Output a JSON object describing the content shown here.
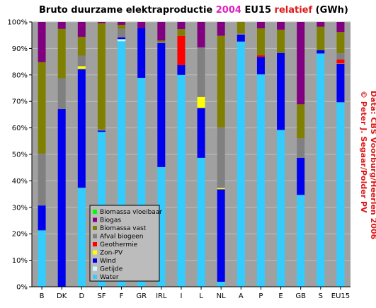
{
  "chart_data": {
    "type": "bar",
    "stacked": true,
    "title": {
      "part1": "Bruto duurzame elektraproductie ",
      "year": "2004",
      "part2": " EU15 ",
      "relatief": "relatief",
      "part3": " (GWh)"
    },
    "title_colors": {
      "base": "#000000",
      "year": "#e020c0",
      "relatief": "#e01a1a"
    },
    "credit_lines": [
      "© Peter J. Segaar/Polder PV",
      "Data: CBS Voorburg/Heerlen 2006"
    ],
    "credit_color": "#e01a1a",
    "categories": [
      "B",
      "DK",
      "D",
      "SF",
      "F",
      "GR",
      "IRL",
      "I",
      "L",
      "NL",
      "A",
      "P",
      "E",
      "GB",
      "S",
      "EU15"
    ],
    "y_ticks": [
      "0%",
      "10%",
      "20%",
      "30%",
      "40%",
      "50%",
      "60%",
      "70%",
      "80%",
      "90%",
      "100%"
    ],
    "ylim": [
      0,
      100
    ],
    "unit": "%",
    "grid": true,
    "plot_background": "#a0a0a0",
    "legend_position": "lower-left inside",
    "series": [
      {
        "name": "Water",
        "color": "#33ccff",
        "values": [
          21.3,
          0,
          37.4,
          58.5,
          92.7,
          78.9,
          45.2,
          80.0,
          48.7,
          1.9,
          92.6,
          80.2,
          59.2,
          34.7,
          88.1,
          69.7
        ]
      },
      {
        "name": "Getijde",
        "color": "#ccffff",
        "values": [
          0,
          0,
          0,
          0,
          0.8,
          0,
          0,
          0,
          0,
          0,
          0,
          0,
          0,
          0,
          0,
          0
        ]
      },
      {
        "name": "Wind",
        "color": "#0000ee",
        "values": [
          9.4,
          67.1,
          44.8,
          0.5,
          0.7,
          18.8,
          46.8,
          3.7,
          18.8,
          34.9,
          2.6,
          6.6,
          29.1,
          14.0,
          1.2,
          14.6
        ]
      },
      {
        "name": "Zon-PV",
        "color": "#ffff00",
        "values": [
          0,
          0,
          1.1,
          0,
          0,
          0,
          0,
          0,
          4.2,
          0.5,
          0,
          0,
          0,
          0,
          0,
          0.1
        ]
      },
      {
        "name": "Geothermie",
        "color": "#ff0000",
        "values": [
          0,
          0,
          0,
          0,
          0,
          0,
          0,
          11.0,
          0,
          0,
          0,
          0.6,
          0,
          0,
          0,
          1.4
        ]
      },
      {
        "name": "Afval biogeen",
        "color": "#808080",
        "values": [
          19.6,
          11.6,
          4.0,
          0.5,
          3.2,
          0,
          0.5,
          0,
          18.7,
          22.9,
          0.5,
          0,
          0,
          7.4,
          0,
          2.4
        ]
      },
      {
        "name": "Biomassa vast",
        "color": "#808000",
        "values": [
          34.5,
          18.7,
          7.1,
          40.0,
          1.5,
          0,
          0.5,
          2.6,
          0,
          34.6,
          4.3,
          10.2,
          8.8,
          12.8,
          8.9,
          8.0
        ]
      },
      {
        "name": "Biogas",
        "color": "#800080",
        "values": [
          15.2,
          2.6,
          5.6,
          0.5,
          1.1,
          2.3,
          7.0,
          2.7,
          9.6,
          5.2,
          0,
          2.4,
          2.9,
          31.1,
          1.8,
          3.8
        ]
      },
      {
        "name": "Biomassa vloeibaar",
        "color": "#00ff00",
        "values": [
          0,
          0,
          0,
          0,
          0,
          0,
          0,
          0,
          0,
          0,
          0,
          0,
          0,
          0,
          0,
          0
        ]
      }
    ],
    "legend_order": [
      "Biomassa vloeibaar",
      "Biogas",
      "Biomassa vast",
      "Afval biogeen",
      "Geothermie",
      "Zon-PV",
      "Wind",
      "Getijde",
      "Water"
    ]
  }
}
